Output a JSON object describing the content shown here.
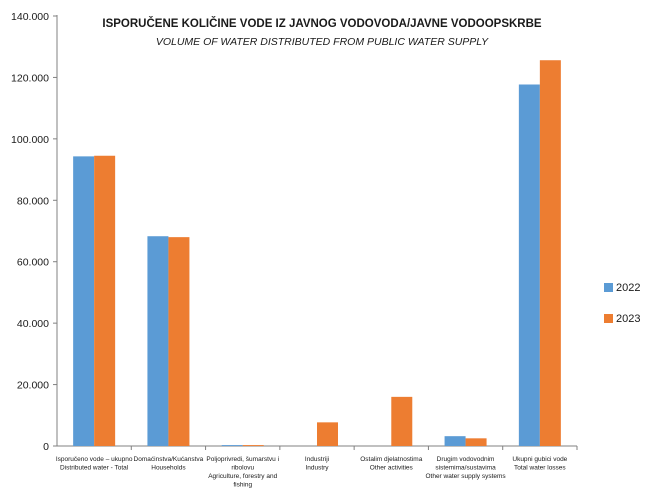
{
  "chart_data": {
    "type": "bar",
    "title": "ISPORUČENE KOLIČINE VODE IZ JAVNOG VODOVODA/JAVNE VODOOPSKRBE",
    "subtitle": "VOLUME OF WATER DISTRIBUTED FROM PUBLIC WATER SUPPLY",
    "categories": [
      [
        "Isporučeno vode – ukupno",
        "Distributed water - Total"
      ],
      [
        "Domaćinstva/Kućanstva",
        "Households"
      ],
      [
        "Poljoprivredi, šumarstvu i",
        "ribolovu",
        "Agriculture, forestry and",
        "fishing"
      ],
      [
        "Industriji",
        "Industry"
      ],
      [
        "Ostalim djelatnostima",
        "Other activities"
      ],
      [
        "Drugim vodovodnim",
        "sistemima/sustavima",
        "Other water supply systems"
      ],
      [
        "Ukupni gubici vode",
        "Total water losses"
      ]
    ],
    "series": [
      {
        "name": "2022",
        "color": "#5b9bd5",
        "values": [
          94300,
          68300,
          300,
          0,
          0,
          3200,
          117700
        ]
      },
      {
        "name": "2023",
        "color": "#ed7d31",
        "values": [
          94500,
          68000,
          300,
          7700,
          16000,
          2500,
          125600
        ]
      }
    ],
    "yticks": [
      "0",
      "20.000",
      "40.000",
      "60.000",
      "80.000",
      "100.000",
      "120.000",
      "140.000"
    ],
    "ylim": [
      0,
      140000
    ],
    "grid": false,
    "legend_position": "right"
  }
}
